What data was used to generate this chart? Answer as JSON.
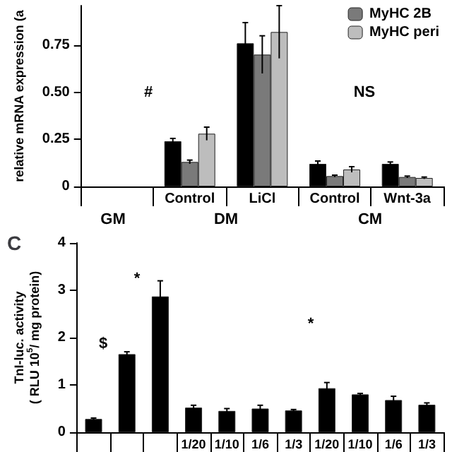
{
  "chart_data": [
    {
      "type": "bar",
      "ylabel": "relative mRNA expression (a",
      "categories": [
        null,
        "Control",
        "LiCl",
        "Control",
        "Wnt-3a"
      ],
      "series": [
        {
          "color": "#000000",
          "values": [
            null,
            0.24,
            0.76,
            0.12,
            0.12
          ],
          "errors": [
            null,
            0.015,
            0.11,
            0.015,
            0.01
          ]
        },
        {
          "name": "MyHC 2B",
          "color": "#7a7a7a",
          "values": [
            null,
            0.13,
            0.7,
            0.055,
            0.05
          ],
          "errors": [
            null,
            0.01,
            0.1,
            0.005,
            0.005
          ]
        },
        {
          "name": "MyHC peri",
          "color": "#bdbdbd",
          "values": [
            null,
            0.28,
            0.82,
            0.09,
            0.045
          ],
          "errors": [
            null,
            0.035,
            0.14,
            0.015,
            0.005
          ]
        }
      ],
      "ylim": [
        0,
        0.96
      ],
      "yticks": [
        0,
        0.25,
        {
          "value": 0.5,
          "label": "0.50"
        },
        0.75
      ],
      "legend": "top right",
      "grid": false,
      "annotations": [
        "#",
        "NS",
        "GM",
        "DM",
        "CM"
      ]
    },
    {
      "type": "bar",
      "title": "C",
      "ylabel": "TnI-luc. activity\n( RLU 10$^{5}$/ mg protein)",
      "categories": [
        null,
        null,
        null,
        "1/20",
        "1/10",
        "1/6",
        "1/3",
        "1/20",
        "1/10",
        "1/6",
        "1/3"
      ],
      "series": [
        {
          "color": "#000000",
          "values": [
            0.28,
            1.65,
            2.87,
            0.52,
            0.45,
            0.5,
            0.46,
            0.93,
            0.8,
            0.68,
            0.58
          ],
          "errors": [
            0.02,
            0.05,
            0.33,
            0.05,
            0.05,
            0.07,
            0.02,
            0.12,
            0.02,
            0.08,
            0.04
          ]
        }
      ],
      "ylim": [
        0,
        4
      ],
      "yticks": [
        0,
        1,
        2,
        3,
        4
      ],
      "legend": false,
      "grid": false,
      "annotations": [
        "$",
        "*",
        "*"
      ]
    }
  ]
}
